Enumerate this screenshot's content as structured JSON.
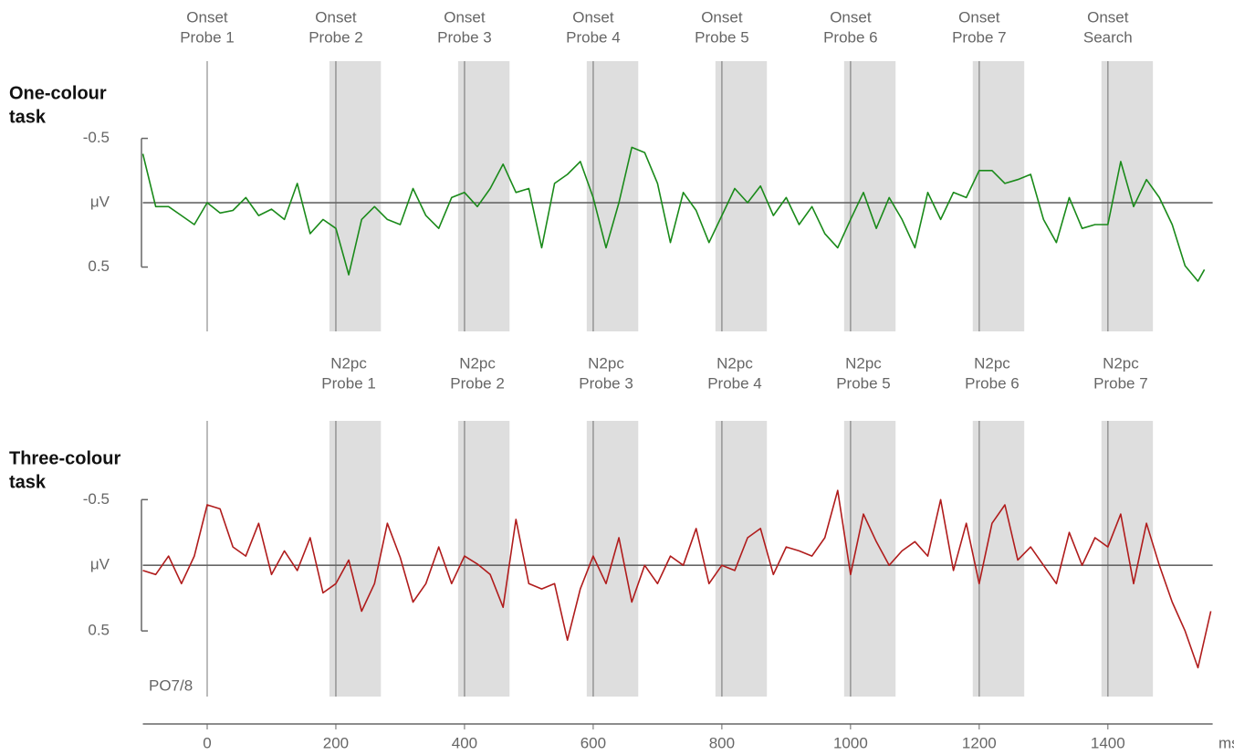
{
  "chart_data": [
    {
      "type": "line",
      "title": [
        "One-colour",
        "task"
      ],
      "annotations": [
        {
          "x": 0,
          "text": [
            "Onset",
            "Probe 1"
          ]
        },
        {
          "x": 200,
          "text": [
            "Onset",
            "Probe 2"
          ]
        },
        {
          "x": 400,
          "text": [
            "Onset",
            "Probe 3"
          ]
        },
        {
          "x": 600,
          "text": [
            "Onset",
            "Probe 4"
          ]
        },
        {
          "x": 800,
          "text": [
            "Onset",
            "Probe 5"
          ]
        },
        {
          "x": 1000,
          "text": [
            "Onset",
            "Probe 6"
          ]
        },
        {
          "x": 1200,
          "text": [
            "Onset",
            "Probe 7"
          ]
        },
        {
          "x": 1400,
          "text": [
            "Onset",
            "Search"
          ]
        }
      ],
      "markers": [
        0,
        200,
        400,
        600,
        800,
        1000,
        1200,
        1400
      ],
      "shaded": [
        [
          190,
          270
        ],
        [
          390,
          470
        ],
        [
          590,
          670
        ],
        [
          790,
          870
        ],
        [
          990,
          1070
        ],
        [
          1190,
          1270
        ],
        [
          1390,
          1470
        ]
      ],
      "xlim": [
        -100,
        1560
      ],
      "ylim": [
        -1.1,
        1.0
      ],
      "y_inverted": true,
      "yticks": [
        -0.5,
        {
          "value": 0,
          "label": "μV"
        },
        0.5
      ],
      "x": [
        -100,
        -80,
        -60,
        -40,
        -20,
        0,
        20,
        40,
        60,
        80,
        100,
        120,
        140,
        160,
        180,
        200,
        220,
        240,
        260,
        280,
        300,
        320,
        340,
        360,
        380,
        400,
        420,
        440,
        460,
        480,
        500,
        520,
        540,
        560,
        580,
        600,
        620,
        640,
        660,
        680,
        700,
        720,
        740,
        760,
        780,
        800,
        820,
        840,
        860,
        880,
        900,
        920,
        940,
        960,
        980,
        1000,
        1020,
        1040,
        1060,
        1080,
        1100,
        1120,
        1140,
        1160,
        1180,
        1200,
        1220,
        1240,
        1260,
        1280,
        1300,
        1320,
        1340,
        1360,
        1380,
        1400,
        1420,
        1440,
        1460,
        1480,
        1500,
        1520,
        1540,
        1550
      ],
      "series": [
        {
          "color": "#1a8a1a",
          "values": [
            -0.38,
            0.03,
            0.03,
            0.1,
            0.17,
            0,
            0.08,
            0.06,
            -0.04,
            0.1,
            0.05,
            0.13,
            -0.15,
            0.24,
            0.13,
            0.2,
            0.56,
            0.13,
            0.03,
            0.13,
            0.17,
            -0.11,
            0.1,
            0.2,
            -0.04,
            -0.08,
            0.03,
            -0.11,
            -0.3,
            -0.08,
            -0.11,
            0.35,
            -0.15,
            -0.22,
            -0.32,
            -0.04,
            0.35,
            0,
            -0.43,
            -0.39,
            -0.15,
            0.31,
            -0.08,
            0.06,
            0.31,
            0.1,
            -0.11,
            0,
            -0.13,
            0.1,
            -0.04,
            0.17,
            0.03,
            0.24,
            0.35,
            0.13,
            -0.08,
            0.2,
            -0.04,
            0.13,
            0.35,
            -0.08,
            0.13,
            -0.08,
            -0.04,
            -0.25,
            -0.25,
            -0.15,
            -0.18,
            -0.22,
            0.13,
            0.31,
            -0.04,
            0.2,
            0.17,
            0.17,
            -0.32,
            0.03,
            -0.18,
            -0.04,
            0.17,
            0.49,
            0.61,
            0.52
          ]
        }
      ]
    },
    {
      "type": "line",
      "title": [
        "Three-colour",
        "task"
      ],
      "label": "PO7/8",
      "annotations": [
        {
          "x": 220,
          "text": [
            "N2pc",
            "Probe 1"
          ]
        },
        {
          "x": 420,
          "text": [
            "N2pc",
            "Probe 2"
          ]
        },
        {
          "x": 620,
          "text": [
            "N2pc",
            "Probe 3"
          ]
        },
        {
          "x": 820,
          "text": [
            "N2pc",
            "Probe 4"
          ]
        },
        {
          "x": 1020,
          "text": [
            "N2pc",
            "Probe 5"
          ]
        },
        {
          "x": 1220,
          "text": [
            "N2pc",
            "Probe 6"
          ]
        },
        {
          "x": 1420,
          "text": [
            "N2pc",
            "Probe 7"
          ]
        }
      ],
      "markers": [
        0,
        200,
        400,
        600,
        800,
        1000,
        1200,
        1400
      ],
      "shaded": [
        [
          190,
          270
        ],
        [
          390,
          470
        ],
        [
          590,
          670
        ],
        [
          790,
          870
        ],
        [
          990,
          1070
        ],
        [
          1190,
          1270
        ],
        [
          1390,
          1470
        ]
      ],
      "xlim": [
        -100,
        1560
      ],
      "ylim": [
        -1.1,
        1.0
      ],
      "y_inverted": true,
      "yticks": [
        -0.5,
        {
          "value": 0,
          "label": "μV"
        },
        0.5
      ],
      "xticks": [
        0,
        200,
        400,
        600,
        800,
        1000,
        1200,
        1400
      ],
      "xlabel": "ms",
      "x": [
        -100,
        -80,
        -60,
        -40,
        -20,
        0,
        20,
        40,
        60,
        80,
        100,
        120,
        140,
        160,
        180,
        200,
        220,
        240,
        260,
        280,
        300,
        320,
        340,
        360,
        380,
        400,
        420,
        440,
        460,
        480,
        500,
        520,
        540,
        560,
        580,
        600,
        620,
        640,
        660,
        680,
        700,
        720,
        740,
        760,
        780,
        800,
        820,
        840,
        860,
        880,
        900,
        920,
        940,
        960,
        980,
        1000,
        1020,
        1040,
        1060,
        1080,
        1100,
        1120,
        1140,
        1160,
        1180,
        1200,
        1220,
        1240,
        1260,
        1280,
        1300,
        1320,
        1340,
        1360,
        1380,
        1400,
        1420,
        1440,
        1460,
        1480,
        1500,
        1520,
        1540,
        1560
      ],
      "series": [
        {
          "color": "#b01c1c",
          "values": [
            0.04,
            0.07,
            -0.07,
            0.14,
            -0.07,
            -0.46,
            -0.43,
            -0.14,
            -0.07,
            -0.32,
            0.07,
            -0.11,
            0.04,
            -0.21,
            0.21,
            0.14,
            -0.04,
            0.35,
            0.14,
            -0.32,
            -0.06,
            0.28,
            0.14,
            -0.14,
            0.14,
            -0.07,
            -0.01,
            0.07,
            0.32,
            -0.35,
            0.14,
            0.18,
            0.14,
            0.57,
            0.18,
            -0.07,
            0.14,
            -0.21,
            0.28,
            0,
            0.14,
            -0.07,
            0,
            -0.28,
            0.14,
            0,
            0.04,
            -0.21,
            -0.28,
            0.07,
            -0.14,
            -0.11,
            -0.07,
            -0.21,
            -0.57,
            0.07,
            -0.39,
            -0.18,
            0,
            -0.11,
            -0.18,
            -0.07,
            -0.5,
            0.04,
            -0.32,
            0.14,
            -0.32,
            -0.46,
            -0.04,
            -0.14,
            0,
            0.14,
            -0.25,
            0,
            -0.21,
            -0.14,
            -0.39,
            0.14,
            -0.32,
            0,
            0.28,
            0.5,
            0.78,
            0.35
          ]
        }
      ]
    }
  ]
}
